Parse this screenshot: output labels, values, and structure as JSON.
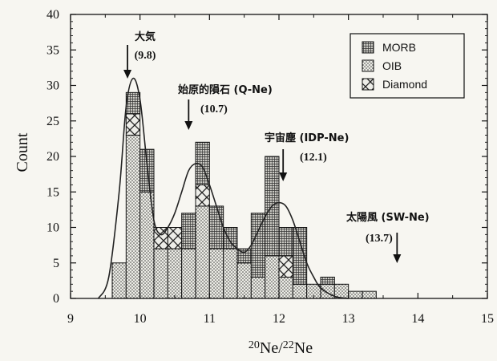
{
  "chart_data": {
    "type": "bar",
    "subtype": "stacked-histogram-with-density-curve",
    "xlabel": "20Ne/22Ne",
    "ylabel": "Count",
    "xlim": [
      9,
      15
    ],
    "ylim": [
      0,
      40
    ],
    "x_ticks": [
      "9",
      "10",
      "11",
      "12",
      "13",
      "14",
      "15"
    ],
    "y_ticks": [
      "0",
      "5",
      "10",
      "15",
      "20",
      "25",
      "30",
      "35",
      "40"
    ],
    "bin_width": 0.2,
    "bin_left_edges": [
      9.6,
      9.8,
      10.0,
      10.2,
      10.4,
      10.6,
      10.8,
      11.0,
      11.2,
      11.4,
      11.6,
      11.8,
      12.0,
      12.2,
      12.4,
      12.6,
      12.8,
      13.0,
      13.2
    ],
    "series": [
      {
        "name": "OIB",
        "pattern": "dots",
        "values": [
          5,
          23,
          15,
          7,
          7,
          7,
          13,
          7,
          7,
          5,
          3,
          6,
          3,
          2,
          2,
          2,
          2,
          1,
          1
        ]
      },
      {
        "name": "Diamond",
        "pattern": "crosshatch",
        "values": [
          0,
          3,
          0,
          3,
          3,
          0,
          3,
          0,
          0,
          0,
          0,
          0,
          3,
          0,
          0,
          0,
          0,
          0,
          0
        ]
      },
      {
        "name": "MORB",
        "pattern": "grid",
        "values": [
          0,
          3,
          6,
          0,
          0,
          5,
          6,
          6,
          3,
          2,
          9,
          14,
          4,
          8,
          0,
          1,
          0,
          0,
          0
        ]
      }
    ],
    "curve": [
      [
        9.4,
        0
      ],
      [
        9.55,
        3
      ],
      [
        9.7,
        15
      ],
      [
        9.8,
        27
      ],
      [
        9.9,
        31
      ],
      [
        10.0,
        28
      ],
      [
        10.1,
        19
      ],
      [
        10.2,
        11
      ],
      [
        10.3,
        9
      ],
      [
        10.4,
        10
      ],
      [
        10.5,
        12
      ],
      [
        10.6,
        15
      ],
      [
        10.7,
        18
      ],
      [
        10.8,
        19
      ],
      [
        10.9,
        18.5
      ],
      [
        11.0,
        16
      ],
      [
        11.1,
        13
      ],
      [
        11.2,
        10
      ],
      [
        11.3,
        8
      ],
      [
        11.4,
        7
      ],
      [
        11.5,
        6.5
      ],
      [
        11.6,
        7.5
      ],
      [
        11.7,
        9.5
      ],
      [
        11.8,
        11.5
      ],
      [
        11.9,
        13
      ],
      [
        12.0,
        13.5
      ],
      [
        12.1,
        13
      ],
      [
        12.2,
        11
      ],
      [
        12.3,
        8
      ],
      [
        12.4,
        5
      ],
      [
        12.5,
        3
      ],
      [
        12.6,
        1.5
      ],
      [
        12.8,
        0.3
      ],
      [
        13.0,
        0
      ]
    ],
    "annotations": [
      {
        "label": "大気",
        "value": "(9.8)",
        "x": 9.82
      },
      {
        "label": "始原的隕石 (Q-Ne)",
        "value": "(10.7)",
        "x": 10.7
      },
      {
        "label": "宇宙塵 (IDP-Ne)",
        "value": "(12.1)",
        "x": 12.06
      },
      {
        "label": "太陽風 (SW-Ne)",
        "value": "(13.7)",
        "x": 13.7
      }
    ],
    "legend_position": "top-right",
    "grid": false
  },
  "colors": {
    "background": "#f7f6f1",
    "ink": "#111111",
    "fill": "#e2e1dc"
  }
}
